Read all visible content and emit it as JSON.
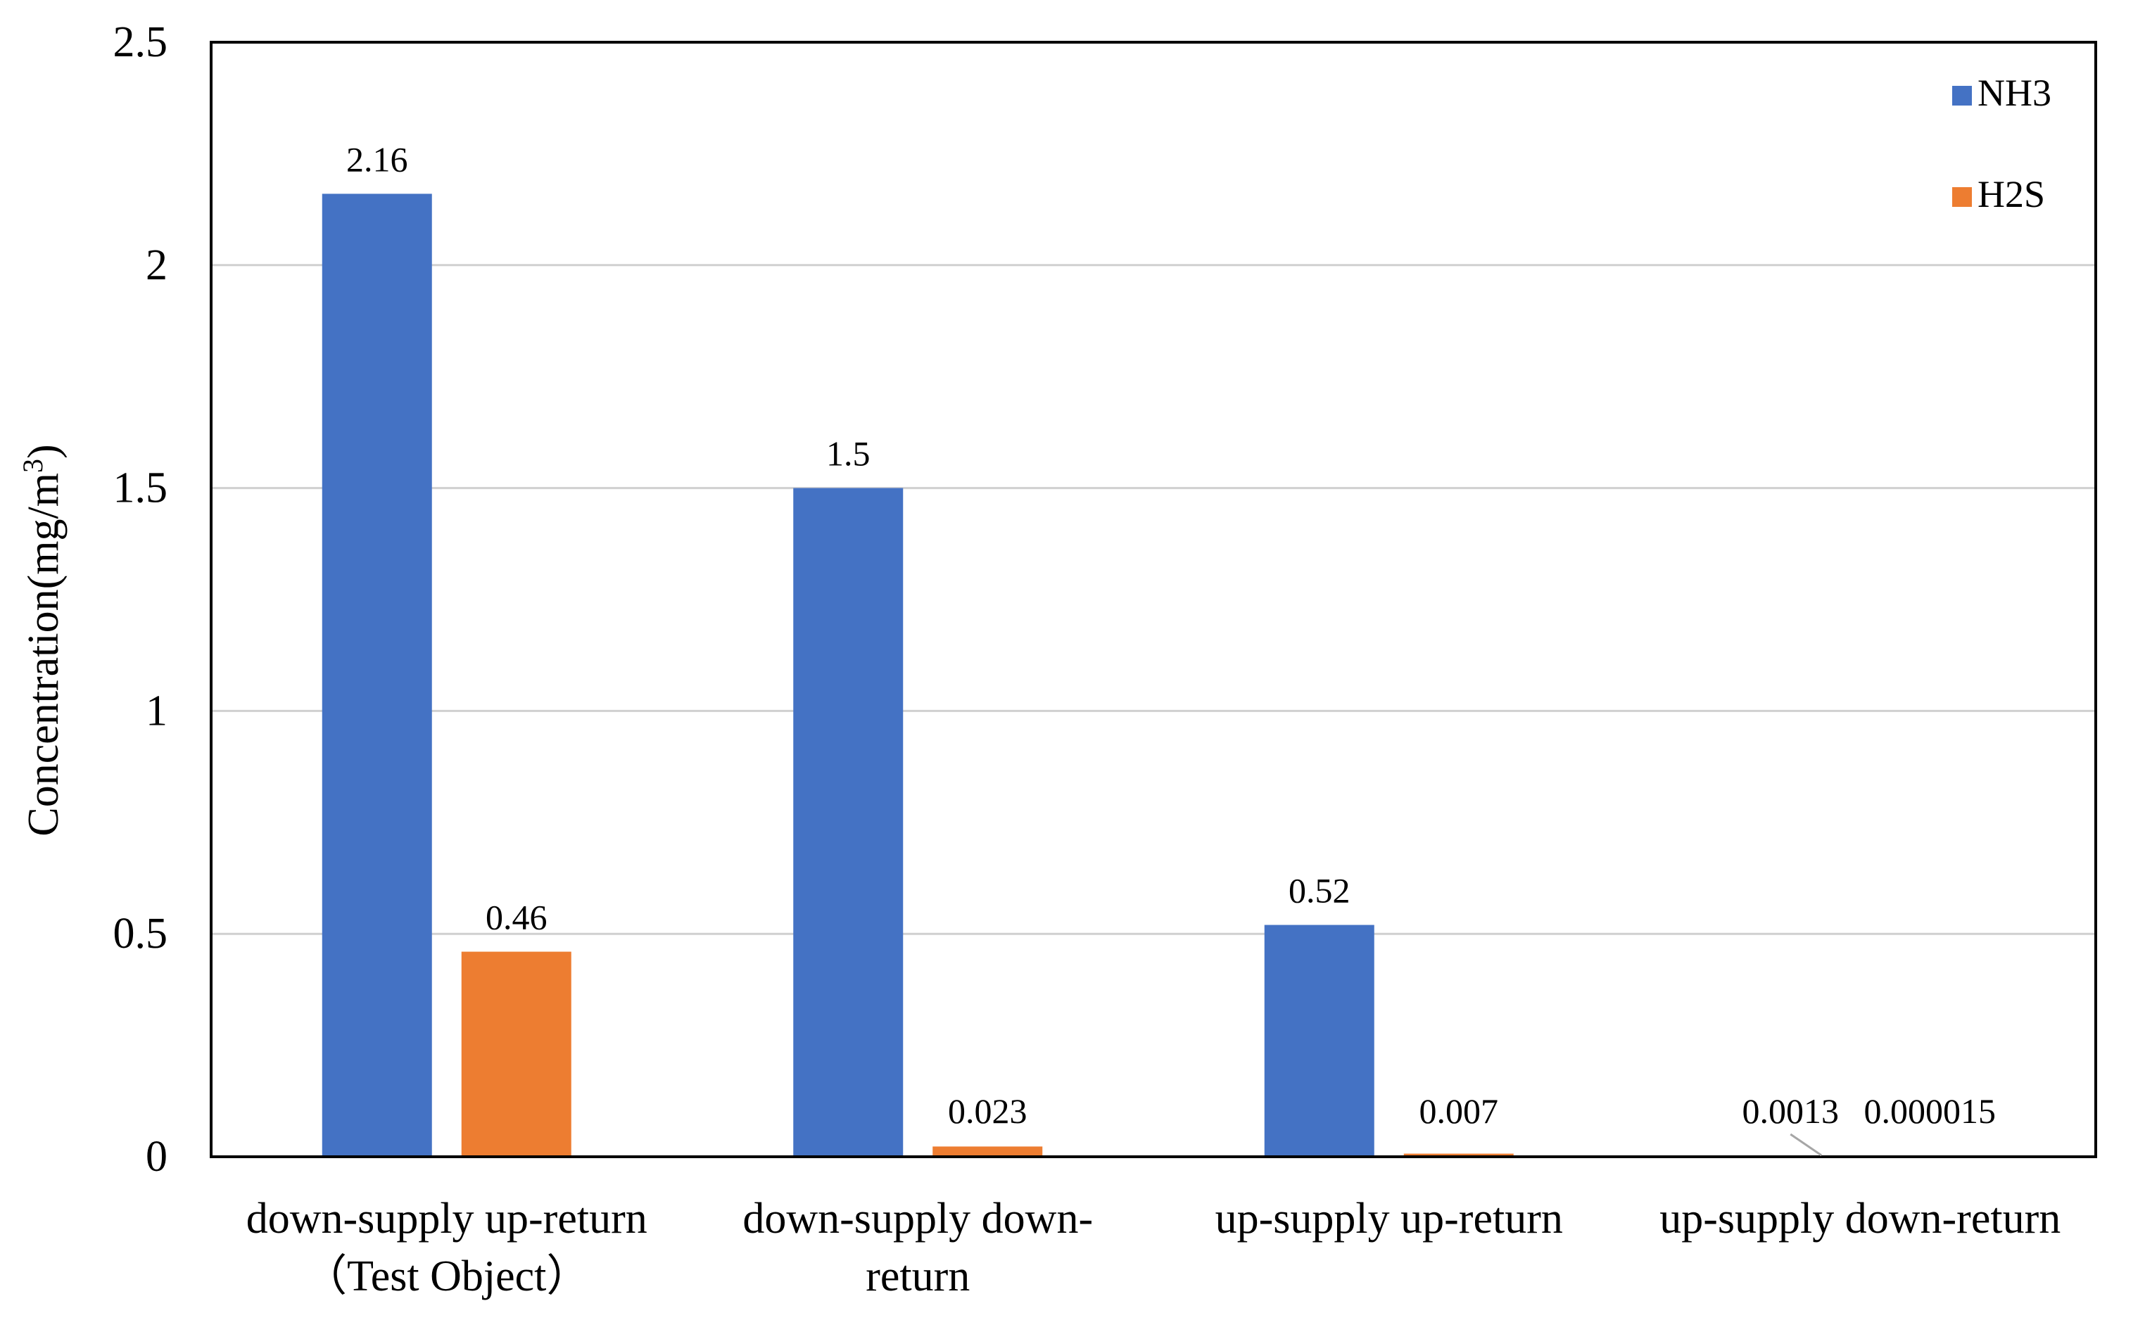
{
  "chart_data": {
    "type": "bar",
    "title": "",
    "xlabel": "",
    "ylabel": "Concentration(mg/m",
    "ylabel_superscript": "3",
    "ylabel_suffix": ")",
    "ylim": [
      0,
      2.5
    ],
    "yticks": [
      0,
      0.5,
      1,
      1.5,
      2,
      2.5
    ],
    "ytick_labels": [
      "0",
      "0.5",
      "1",
      "1.5",
      "2",
      "2.5"
    ],
    "grid": true,
    "legend_position": "top-right",
    "categories": [
      [
        "down-supply  up-return",
        "（Test Object）"
      ],
      [
        "down-supply down-",
        "return"
      ],
      [
        "up-supply  up-return"
      ],
      [
        "up-supply  down-return"
      ]
    ],
    "series": [
      {
        "name": "NH3",
        "color": "#4472C4",
        "values": [
          2.16,
          1.5,
          0.52,
          0.0013
        ],
        "labels": [
          "2.16",
          "1.5",
          "0.52",
          "0.0013"
        ]
      },
      {
        "name": "H2S",
        "color": "#ED7D31",
        "values": [
          0.46,
          0.023,
          0.007,
          1.5e-05
        ],
        "labels": [
          "0.46",
          "0.023",
          "0.007",
          "0.000015"
        ]
      }
    ]
  }
}
